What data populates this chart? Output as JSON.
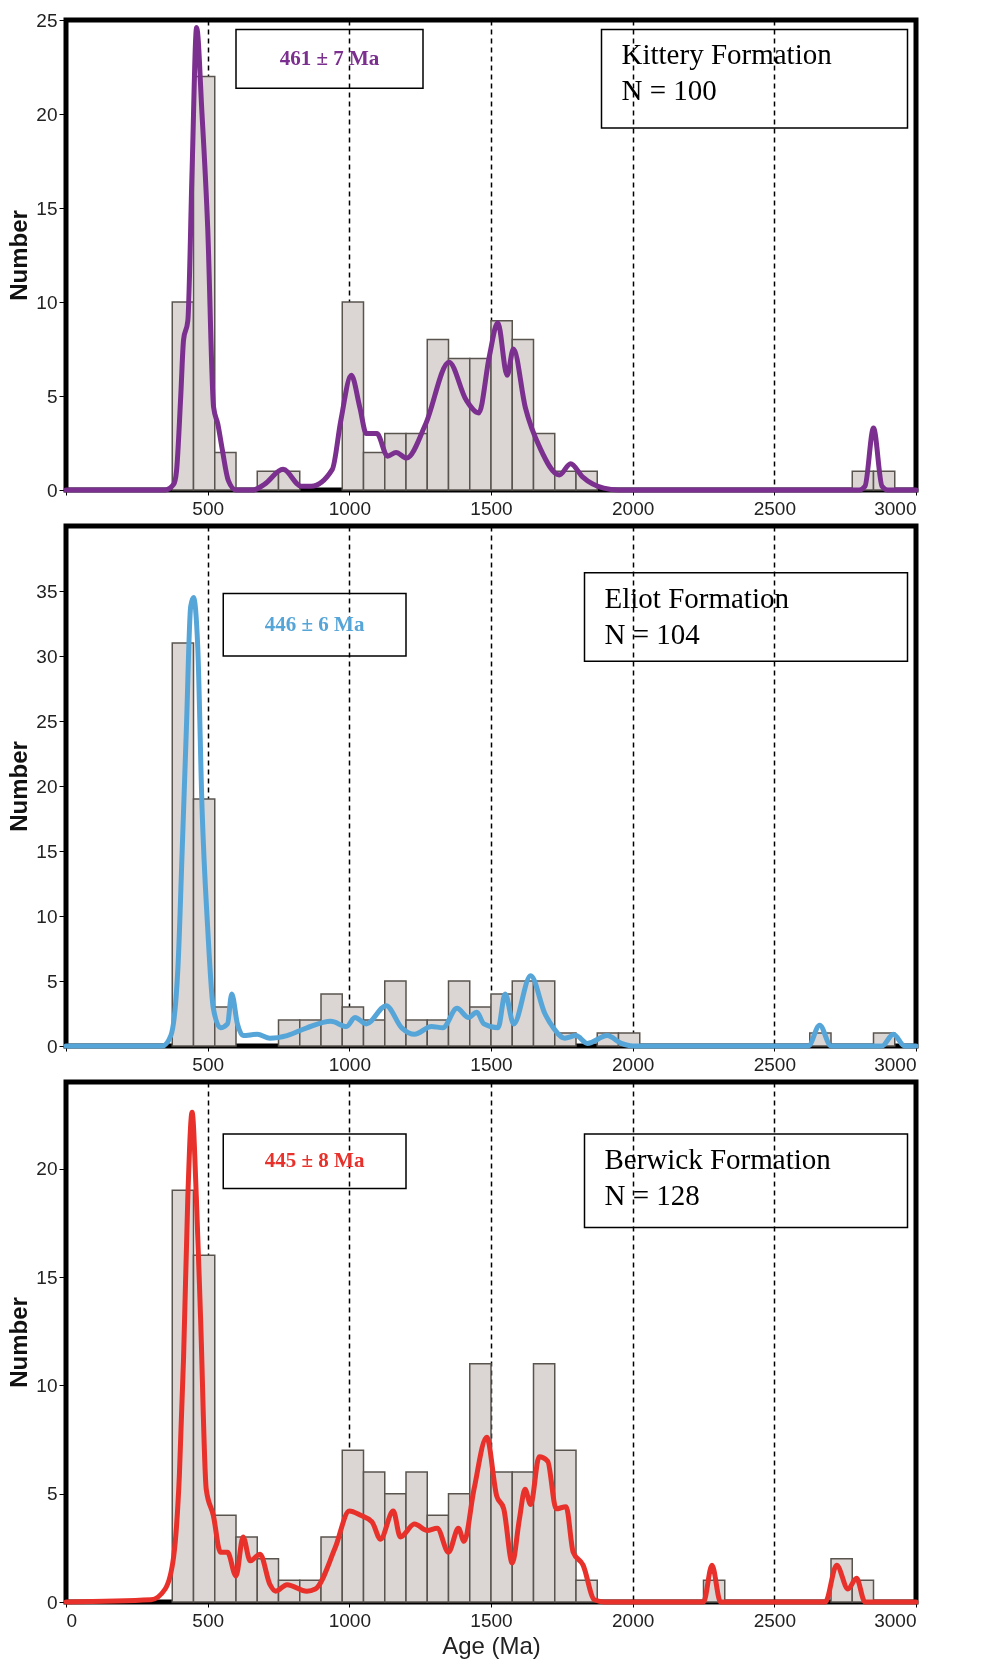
{
  "chart_data": [
    {
      "type": "histogram",
      "ylabel": "Number",
      "color": "#dbd5d3",
      "xlim": [
        0,
        3000
      ],
      "ylim": [
        0,
        25
      ],
      "grid": "x",
      "xticks": [
        {
          "value": 0,
          "label": null
        },
        500,
        1000,
        1500,
        2000,
        2500,
        3000
      ],
      "yticks": [
        0,
        5,
        10,
        15,
        20,
        25
      ],
      "bins": [
        375,
        450,
        525,
        600,
        675,
        750,
        825,
        900,
        975,
        1050,
        1125,
        1200,
        1275,
        1350,
        1425,
        1500,
        1575,
        1650,
        1725,
        1800,
        1875,
        1950,
        2025,
        2100,
        2175,
        2250,
        2325,
        2400,
        2475,
        2550,
        2625,
        2700,
        2775,
        2850,
        2925
      ],
      "values": [
        10,
        22,
        2,
        0,
        1,
        1,
        0,
        0,
        10,
        2,
        3,
        3,
        8,
        7,
        7,
        9,
        8,
        3,
        1,
        1,
        0,
        0,
        0,
        0,
        0,
        0,
        0,
        0,
        0,
        0,
        0,
        0,
        1,
        1
      ],
      "series": [
        {
          "type": "line",
          "color": "#7b2f8e",
          "x": [
            0,
            350,
            380,
            390,
            405,
            415,
            430,
            445,
            461,
            480,
            500,
            521,
            536,
            551,
            573,
            600,
            660,
            700,
            766,
            830,
            865,
            940,
            970,
            1007,
            1037,
            1060,
            1097,
            1135,
            1165,
            1202,
            1269,
            1352,
            1412,
            1457,
            1494,
            1524,
            1557,
            1579,
            1621,
            1674,
            1741,
            1781,
            1823,
            1898,
            1950,
            2800,
            2820,
            2850,
            2880,
            2900,
            3000
          ],
          "values": [
            0,
            0,
            0.3,
            1,
            5,
            8,
            9,
            17,
            24.6,
            20,
            14,
            4.4,
            3.5,
            2.2,
            0.5,
            0,
            0,
            0.3,
            1.1,
            0.2,
            0.2,
            1.1,
            3.7,
            6.1,
            4.4,
            3.0,
            3.0,
            1.8,
            2.0,
            1.7,
            3.5,
            6.8,
            4.8,
            4.1,
            7.1,
            8.9,
            6.1,
            7.5,
            4.4,
            2.2,
            0.8,
            1.4,
            0.7,
            0.1,
            0,
            0,
            0.2,
            3.3,
            0.2,
            0,
            0
          ]
        }
      ],
      "annotations": [
        "461 ± 7 Ma",
        "Kittery Formation\nN = 100"
      ]
    },
    {
      "type": "histogram",
      "ylabel": "Number",
      "color": "#dbd5d3",
      "xlim": [
        0,
        3000
      ],
      "ylim": [
        0,
        40
      ],
      "grid": "x",
      "xticks": [
        {
          "value": 0,
          "label": null
        },
        500,
        1000,
        1500,
        2000,
        2500,
        3000
      ],
      "yticks": [
        0,
        5,
        10,
        15,
        20,
        25,
        30,
        35
      ],
      "bins": [
        375,
        450,
        525,
        600,
        675,
        750,
        825,
        900,
        975,
        1050,
        1125,
        1200,
        1275,
        1350,
        1425,
        1500,
        1575,
        1650,
        1725,
        1800,
        1875,
        1950,
        2025,
        2100,
        2175,
        2250,
        2325,
        2400,
        2475,
        2550,
        2625,
        2700,
        2775,
        2850,
        2925
      ],
      "values": [
        31,
        19,
        3,
        0,
        0,
        2,
        2,
        4,
        3,
        2,
        5,
        2,
        2,
        5,
        3,
        4,
        5,
        5,
        1,
        0,
        1,
        1,
        0,
        0,
        0,
        0,
        0,
        0,
        0,
        0,
        1,
        0,
        0,
        1
      ],
      "series": [
        {
          "type": "line",
          "color": "#56a5d8",
          "x": [
            0,
            340,
            370,
            395,
            410,
            425,
            440,
            450,
            465,
            480,
            500,
            520,
            545,
            570,
            585,
            605,
            625,
            675,
            720,
            780,
            850,
            935,
            990,
            1020,
            1060,
            1130,
            1185,
            1230,
            1290,
            1330,
            1380,
            1420,
            1450,
            1475,
            1525,
            1550,
            1580,
            1640,
            1690,
            1720,
            1760,
            1800,
            1840,
            1910,
            1960,
            2000,
            2620,
            2660,
            2700,
            2880,
            2920,
            2960,
            3000
          ],
          "values": [
            0,
            0,
            0.8,
            6,
            15,
            24.5,
            33.8,
            34.5,
            30.7,
            18.4,
            9.1,
            2.9,
            1.4,
            1.7,
            4.0,
            1.7,
            0.8,
            0.9,
            0.6,
            0.8,
            1.4,
            1.9,
            1.5,
            2.2,
            1.7,
            3.1,
            1.4,
            0.9,
            1.5,
            1.4,
            2.9,
            2.2,
            2.6,
            1.7,
            1.4,
            4.0,
            1.7,
            5.4,
            2.5,
            1.4,
            0.6,
            0.8,
            0.2,
            0.8,
            0.2,
            0,
            0,
            1.6,
            0,
            0,
            0.9,
            0,
            0
          ]
        }
      ],
      "annotations": [
        "446 ± 6 Ma",
        "Eliot Formation\nN = 104"
      ]
    },
    {
      "type": "histogram",
      "xlabel": "Age (Ma)",
      "ylabel": "Number",
      "color": "#dbd5d3",
      "xlim": [
        0,
        3000
      ],
      "ylim": [
        0,
        24
      ],
      "grid": "x",
      "xticks": [
        0,
        500,
        1000,
        1500,
        2000,
        2500,
        3000
      ],
      "yticks": [
        0,
        5,
        10,
        15,
        20
      ],
      "bins": [
        375,
        450,
        525,
        600,
        675,
        750,
        825,
        900,
        975,
        1050,
        1125,
        1200,
        1275,
        1350,
        1425,
        1500,
        1575,
        1650,
        1725,
        1800,
        1875,
        1950,
        2025,
        2100,
        2175,
        2250,
        2325,
        2400,
        2475,
        2550,
        2625,
        2700,
        2775,
        2850
      ],
      "values": [
        19,
        16,
        4,
        3,
        2,
        1,
        1,
        3,
        7,
        6,
        5,
        6,
        4,
        5,
        11,
        6,
        6,
        11,
        7,
        1,
        0,
        0,
        0,
        0,
        0,
        1,
        0,
        0,
        0,
        0,
        0,
        2,
        1
      ],
      "series": [
        {
          "type": "line",
          "color": "#e8312a",
          "x": [
            0,
            300,
            350,
            380,
            400,
            415,
            430,
            445,
            460,
            475,
            495,
            520,
            545,
            570,
            600,
            625,
            650,
            685,
            720,
            740,
            780,
            850,
            880,
            950,
            1000,
            1040,
            1080,
            1110,
            1155,
            1180,
            1230,
            1275,
            1310,
            1350,
            1385,
            1405,
            1440,
            1485,
            1520,
            1545,
            1575,
            1600,
            1620,
            1640,
            1670,
            1700,
            1730,
            1765,
            1790,
            1825,
            1865,
            1900,
            2250,
            2280,
            2310,
            2680,
            2720,
            2760,
            2790,
            2820,
            3000
          ],
          "values": [
            0,
            0.1,
            0.6,
            2.1,
            5.8,
            11.3,
            18.7,
            22.6,
            18.7,
            13.1,
            5.2,
            4.0,
            2.3,
            2.3,
            1.2,
            3.0,
            1.9,
            2.2,
            0.8,
            0.5,
            0.8,
            0.5,
            0.6,
            2.5,
            4.2,
            4.0,
            3.7,
            2.9,
            4.2,
            3.0,
            3.6,
            3.3,
            3.4,
            2.3,
            3.4,
            2.8,
            5.2,
            7.6,
            4.9,
            4.3,
            1.8,
            3.8,
            5.2,
            4.5,
            6.7,
            6.5,
            4.3,
            4.4,
            2.3,
            1.7,
            0.1,
            0,
            0,
            1.7,
            0,
            0,
            1.7,
            0.6,
            1.1,
            0,
            0
          ]
        }
      ],
      "annotations": [
        "445 ± 8 Ma",
        "Berwick Formation\nN = 128"
      ]
    }
  ]
}
